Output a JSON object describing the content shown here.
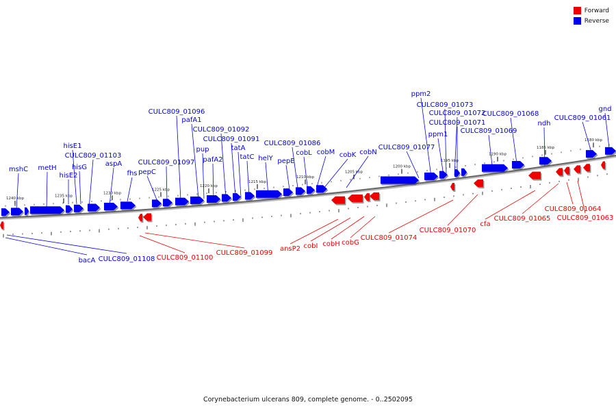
{
  "title": "Corynebacterium ulcerans 809, complete genome. - 0..2502095",
  "legend": [
    {
      "label": "Forward",
      "color": "#ee0000"
    },
    {
      "label": "Reverse",
      "color": "#0000ee"
    }
  ],
  "colors": {
    "forward": "#ee0000",
    "reverse": "#0000ee",
    "backbone": "#666666"
  },
  "scale_ticks": [
    "1240 kbp",
    "1235 kbp",
    "1230 kbp",
    "1225 kbp",
    "1220 kbp",
    "1215 kbp",
    "1210 kbp",
    "1205 kbp",
    "1200 kbp",
    "1195 kbp",
    "1190 kbp",
    "1185 kbp",
    "1180 kbp"
  ],
  "reverse_gene_labels": [
    "mshC",
    "metH",
    "hisE2",
    "hisE1",
    "CULC809_01103",
    "hisG",
    "aspA",
    "fhs",
    "pepC",
    "CULC809_01097",
    "CULC809_01096",
    "pafA1",
    "pup",
    "pafA2",
    "CULC809_01092",
    "CULC809_01091",
    "tatA",
    "tatC",
    "helY",
    "pepE",
    "CULC809_01086",
    "cobL",
    "cobM",
    "cobK",
    "cobN",
    "CULC809_01077",
    "ppm2",
    "CULC809_01073",
    "ppm1",
    "CULC809_01072",
    "CULC809_01071",
    "CULC809_01069",
    "CULC809_01068",
    "ndh",
    "CULC809_01061",
    "gnd",
    "bacA",
    "CULC809_01108"
  ],
  "forward_gene_labels": [
    "CULC809_01100",
    "CULC809_01099",
    "ansP2",
    "cobI",
    "cobH",
    "cobG",
    "CULC809_01074",
    "CULC809_01070",
    "cfa",
    "CULC809_01065",
    "CULC809_01064",
    "CULC809_01063"
  ]
}
